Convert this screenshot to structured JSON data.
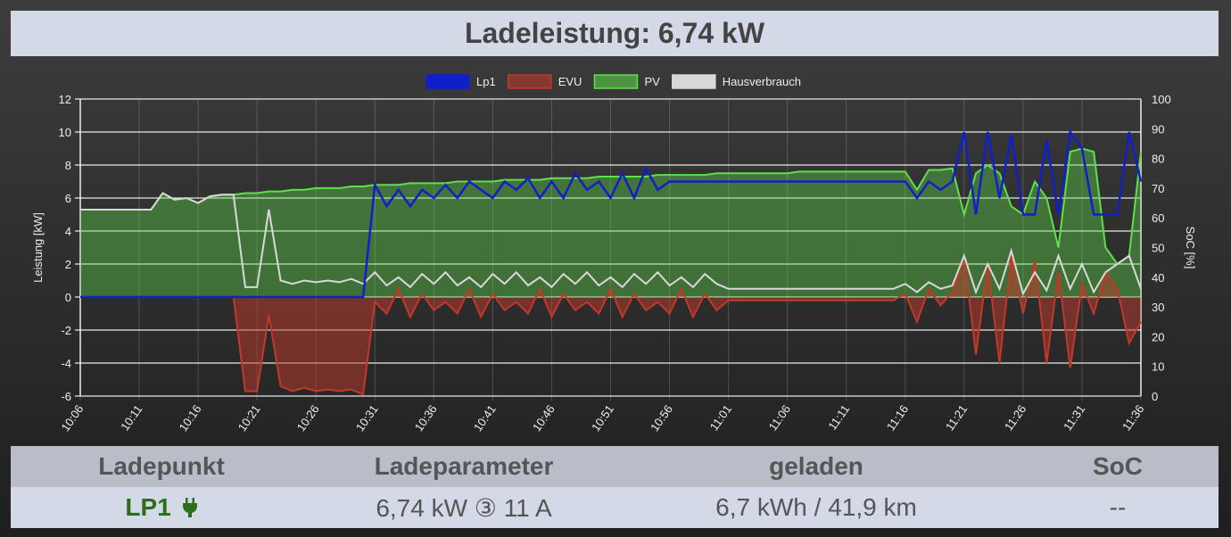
{
  "header": {
    "title": "Ladeleistung: 6,74 kW"
  },
  "table": {
    "headers": [
      "Ladepunkt",
      "Ladeparameter",
      "geladen",
      "SoC"
    ],
    "rows": [
      {
        "ladepunkt": "LP1",
        "ladepunkt_icon": "plug-icon",
        "ladeparameter": "6,74 kW ③ 11 A",
        "geladen": "6,7 kWh / 41,9 km",
        "soc": "--"
      }
    ]
  },
  "colors": {
    "lp1": "#1020c8",
    "evu": "#c0392b",
    "pv": "#5ee04a",
    "haus": "#d8d8d8",
    "header_bg": "#d3d9e6",
    "lp_green": "#2a6e1e"
  },
  "chart_data": {
    "type": "area",
    "ylabel": "Leistung [kW]",
    "y2label": "SoC [%]",
    "ylim": [
      -6,
      12
    ],
    "yticks": [
      -6,
      -4,
      -2,
      0,
      2,
      4,
      6,
      8,
      10,
      12
    ],
    "y2lim": [
      0,
      100
    ],
    "y2ticks": [
      0,
      10,
      20,
      30,
      40,
      50,
      60,
      70,
      80,
      90,
      100
    ],
    "grid": true,
    "legend": "top",
    "xticks": [
      "10:06",
      "10:11",
      "10:16",
      "10:21",
      "10:26",
      "10:31",
      "10:36",
      "10:41",
      "10:46",
      "10:51",
      "10:56",
      "11:01",
      "11:06",
      "11:11",
      "11:16",
      "11:21",
      "11:26",
      "11:31",
      "11:36"
    ],
    "x_start": "10:06",
    "x_end": "11:36",
    "x_step_minutes": 1,
    "series": [
      {
        "name": "Lp1",
        "values": [
          0,
          0,
          0,
          0,
          0,
          0,
          0,
          0,
          0,
          0,
          0,
          0,
          0,
          0,
          0,
          0,
          0,
          0,
          0,
          0,
          0,
          0,
          0,
          0,
          0,
          6.8,
          5.5,
          6.5,
          5.5,
          6.5,
          6.0,
          6.8,
          6.0,
          7.0,
          6.5,
          6.0,
          7.0,
          6.5,
          7.2,
          6.0,
          7.0,
          6.0,
          7.5,
          6.5,
          7.0,
          6.0,
          7.5,
          6.0,
          7.8,
          6.5,
          7,
          7,
          7,
          7,
          7,
          7,
          7,
          7,
          7,
          7,
          7,
          7,
          7,
          7,
          7,
          7,
          7,
          7,
          7,
          7,
          7.0,
          6.0,
          7.0,
          6.5,
          7.0,
          10.0,
          5.0,
          10.0,
          6.0,
          9.8,
          5.0,
          5.0,
          9.5,
          5.0,
          10.0,
          9.0,
          5.0,
          5.0,
          5.0,
          10.0,
          7.0
        ]
      },
      {
        "name": "EVU",
        "values": [
          0,
          0,
          0,
          0,
          0,
          0,
          0,
          0,
          0,
          0,
          0,
          0,
          0,
          0,
          -5.7,
          -5.7,
          -1.1,
          -5.4,
          -5.7,
          -5.5,
          -5.7,
          -5.6,
          -5.7,
          -5.6,
          -5.9,
          -0.3,
          -1.0,
          0.5,
          -1.2,
          0.2,
          -0.8,
          -0.3,
          -1.0,
          0.5,
          -1.2,
          0.2,
          -0.8,
          -0.3,
          -1.0,
          0.5,
          -1.2,
          0.2,
          -0.8,
          -0.3,
          -1.0,
          0.5,
          -1.2,
          0.2,
          -0.8,
          -0.3,
          -1.0,
          0.5,
          -1.2,
          0.2,
          -0.8,
          -0.2,
          -0.2,
          -0.2,
          -0.2,
          -0.2,
          -0.2,
          -0.2,
          -0.2,
          -0.2,
          -0.2,
          -0.2,
          -0.2,
          -0.2,
          -0.2,
          -0.2,
          0.2,
          -1.5,
          0.5,
          -0.5,
          0.3,
          2.5,
          -3.5,
          2.0,
          -4.0,
          2.5,
          -1.0,
          2.2,
          -4.0,
          1.5,
          -4.3,
          0.8,
          -1.0,
          1.5,
          0.5,
          -2.8,
          -1.5
        ]
      },
      {
        "name": "PV",
        "values": [
          5.3,
          5.3,
          5.3,
          5.3,
          5.3,
          5.3,
          5.3,
          6.3,
          5.9,
          6.0,
          5.7,
          6.1,
          6.2,
          6.2,
          6.3,
          6.3,
          6.4,
          6.4,
          6.5,
          6.5,
          6.6,
          6.6,
          6.6,
          6.7,
          6.7,
          6.8,
          6.8,
          6.8,
          6.9,
          6.9,
          6.9,
          6.9,
          7.0,
          7.0,
          7.0,
          7.0,
          7.1,
          7.1,
          7.1,
          7.1,
          7.2,
          7.2,
          7.2,
          7.2,
          7.3,
          7.3,
          7.3,
          7.3,
          7.3,
          7.4,
          7.4,
          7.4,
          7.4,
          7.4,
          7.5,
          7.5,
          7.5,
          7.5,
          7.5,
          7.5,
          7.5,
          7.6,
          7.6,
          7.6,
          7.6,
          7.6,
          7.6,
          7.6,
          7.6,
          7.6,
          7.6,
          6.5,
          7.7,
          7.7,
          7.8,
          5.0,
          7.5,
          8.0,
          7.5,
          5.5,
          5.0,
          7.0,
          6.0,
          3.0,
          8.8,
          9.0,
          8.8,
          3.0,
          2.0,
          2.5,
          8.8
        ]
      },
      {
        "name": "Hausverbrauch",
        "values": [
          5.3,
          5.3,
          5.3,
          5.3,
          5.3,
          5.3,
          5.3,
          6.3,
          5.9,
          6.0,
          5.7,
          6.1,
          6.2,
          6.2,
          0.6,
          0.6,
          5.3,
          1.0,
          0.8,
          1.0,
          0.9,
          1.0,
          0.9,
          1.1,
          0.8,
          1.5,
          0.7,
          1.2,
          0.6,
          1.4,
          0.8,
          1.5,
          0.7,
          1.2,
          0.6,
          1.4,
          0.8,
          1.5,
          0.7,
          1.2,
          0.6,
          1.4,
          0.8,
          1.5,
          0.7,
          1.2,
          0.6,
          1.4,
          0.8,
          1.5,
          0.7,
          1.2,
          0.6,
          1.4,
          0.8,
          0.5,
          0.5,
          0.5,
          0.5,
          0.5,
          0.5,
          0.5,
          0.5,
          0.5,
          0.5,
          0.5,
          0.5,
          0.5,
          0.5,
          0.5,
          0.8,
          0.3,
          0.9,
          0.5,
          0.7,
          2.5,
          0.3,
          2.0,
          0.5,
          2.8,
          0.2,
          1.5,
          0.4,
          2.5,
          0.5,
          2.0,
          0.3,
          1.5,
          2.0,
          2.5,
          0.5
        ]
      }
    ]
  }
}
